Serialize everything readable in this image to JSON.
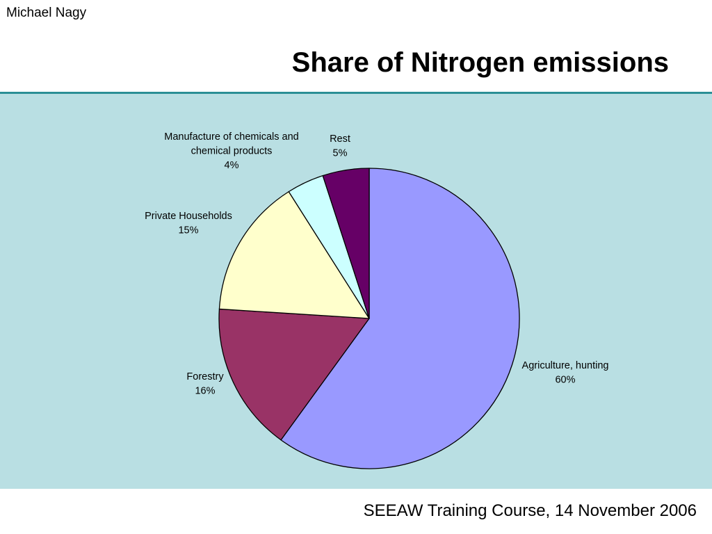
{
  "slide": {
    "author": "Michael Nagy",
    "title": "Share of Nitrogen emissions",
    "footer": "SEEAW Training Course, 14 November 2006"
  },
  "colors": {
    "panel_background": "#b9dfe3",
    "rule": "#2a8f95"
  },
  "chart_data": {
    "type": "pie",
    "title": "",
    "start_angle_deg": 0,
    "direction": "clockwise",
    "slices": [
      {
        "label": [
          "Agriculture, hunting"
        ],
        "value": 60,
        "value_label": "60%",
        "color": "#9999ff"
      },
      {
        "label": [
          "Forestry"
        ],
        "value": 16,
        "value_label": "16%",
        "color": "#993366"
      },
      {
        "label": [
          "Private Households"
        ],
        "value": 15,
        "value_label": "15%",
        "color": "#ffffcc"
      },
      {
        "label": [
          "Manufacture of chemicals and",
          "chemical products"
        ],
        "value": 4,
        "value_label": "4%",
        "color": "#ccffff"
      },
      {
        "label": [
          "Rest"
        ],
        "value": 5,
        "value_label": "5%",
        "color": "#660066"
      }
    ]
  }
}
